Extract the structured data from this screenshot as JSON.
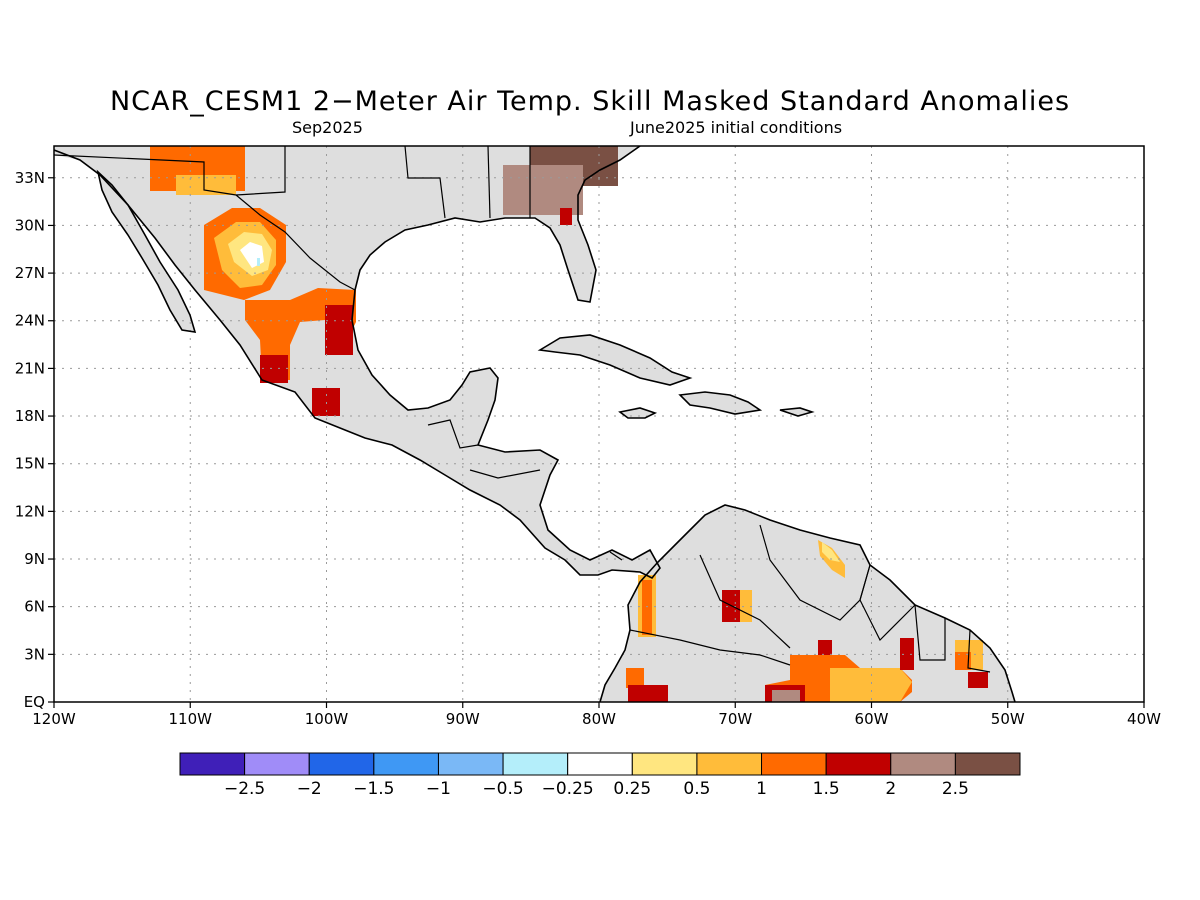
{
  "title": "NCAR_CESM1 2−Meter Air Temp. Skill Masked Standard Anomalies",
  "subtitle_left": "Sep2025",
  "subtitle_right": "June2025 initial conditions",
  "map": {
    "lon_range": [
      -120,
      -40
    ],
    "lat_range": [
      0,
      35
    ],
    "x_ticks": [
      {
        "lon": -120,
        "label": "120W"
      },
      {
        "lon": -110,
        "label": "110W"
      },
      {
        "lon": -100,
        "label": "100W"
      },
      {
        "lon": -90,
        "label": "90W"
      },
      {
        "lon": -80,
        "label": "80W"
      },
      {
        "lon": -70,
        "label": "70W"
      },
      {
        "lon": -60,
        "label": "60W"
      },
      {
        "lon": -50,
        "label": "50W"
      },
      {
        "lon": -40,
        "label": "40W"
      }
    ],
    "y_ticks": [
      {
        "lat": 0,
        "label": "EQ"
      },
      {
        "lat": 3,
        "label": "3N"
      },
      {
        "lat": 6,
        "label": "6N"
      },
      {
        "lat": 9,
        "label": "9N"
      },
      {
        "lat": 12,
        "label": "12N"
      },
      {
        "lat": 15,
        "label": "15N"
      },
      {
        "lat": 18,
        "label": "18N"
      },
      {
        "lat": 21,
        "label": "21N"
      },
      {
        "lat": 24,
        "label": "24N"
      },
      {
        "lat": 27,
        "label": "27N"
      },
      {
        "lat": 30,
        "label": "30N"
      },
      {
        "lat": 33,
        "label": "33N"
      }
    ],
    "grid": "dotted"
  },
  "colorbar": {
    "colors": [
      "#3f1fb8",
      "#a08cf8",
      "#2166e8",
      "#3f98f4",
      "#7ab8f6",
      "#b4eefa",
      "#ffffff",
      "#ffe680",
      "#ffbc3a",
      "#ff6a00",
      "#c00000",
      "#b08a80",
      "#7a5044"
    ],
    "labels": [
      "−2.5",
      "−2",
      "−1.5",
      "−1",
      "−0.5",
      "−0.25",
      "0.25",
      "0.5",
      "1",
      "1.5",
      "2",
      "2.5"
    ]
  },
  "colors": {
    "masked_land": "#dedede",
    "ocean": "#ffffff",
    "coast": "#000000"
  }
}
